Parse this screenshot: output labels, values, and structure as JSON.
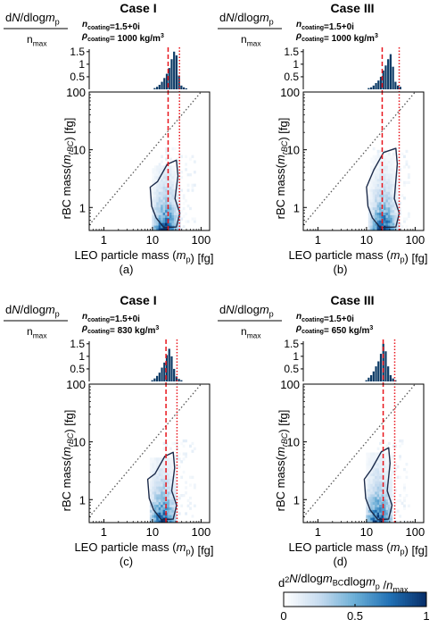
{
  "common": {
    "histogram_label_top": "dN/dlogm",
    "histogram_label_top_sub": "p",
    "histogram_label_bottom": "n",
    "histogram_label_bottom_sub": "max",
    "y_axis_label": "rBC mass(m",
    "y_axis_label_sub": "rBC",
    "y_axis_label_end": ") [fg]",
    "x_axis_label": "LEO particle mass (m",
    "x_axis_label_sub": "p",
    "x_axis_label_end": ") [fg]",
    "x_ticks": [
      "1",
      "10",
      "100"
    ],
    "y_ticks": [
      "1",
      "10",
      "100"
    ],
    "hist_ticks": [
      "0.5",
      "1",
      "1.5"
    ],
    "colors": {
      "bar": "#0d3b66",
      "red_dashed": "#e8151c",
      "red_dotted": "#e8151c",
      "diag": "#555555",
      "contour": "#1c2b4a"
    }
  },
  "panels": [
    {
      "case": "Case I",
      "n_coating": "=1.5+0i",
      "rho_coating": "= 1000 kg/m",
      "letter": "(a)"
    },
    {
      "case": "Case III",
      "n_coating": "=1.5+0i",
      "rho_coating": "= 1000 kg/m",
      "letter": "(b)"
    },
    {
      "case": "Case I",
      "n_coating": "=1.5+0i",
      "rho_coating": "= 830 kg/m",
      "letter": "(c)"
    },
    {
      "case": "Case III",
      "n_coating": "=1.5+0i",
      "rho_coating": "= 650 kg/m",
      "letter": "(d)"
    }
  ],
  "colorbar": {
    "title": "d",
    "title_parts": [
      "d",
      "2",
      "N/dlogm",
      "BC",
      "dlogm",
      "p",
      " /n",
      "max"
    ],
    "ticks": [
      "0",
      "0.5",
      "1"
    ]
  },
  "chart_data": [
    {
      "type": "bar",
      "panel": "(a)",
      "x_scale": "log",
      "xlim": [
        0.5,
        150
      ],
      "ylim": [
        0,
        1.6
      ],
      "bins_log10_center": [
        1.05,
        1.1,
        1.15,
        1.2,
        1.25,
        1.3,
        1.35,
        1.4,
        1.45,
        1.5,
        1.55,
        1.6,
        1.65,
        1.7
      ],
      "values": [
        0.05,
        0.1,
        0.18,
        0.3,
        0.45,
        0.62,
        0.85,
        1.2,
        1.5,
        1.35,
        0.55,
        0.15,
        0.08,
        0.04
      ],
      "dashed_line_x": 21,
      "dotted_line_x": 36
    },
    {
      "type": "heatmap",
      "panel": "(a)",
      "x_scale": "log",
      "y_scale": "log",
      "xlim": [
        0.5,
        150
      ],
      "ylim": [
        0.4,
        100
      ],
      "diagonal": "y = x",
      "dense_region": {
        "x": [
          9,
          35
        ],
        "y": [
          0.5,
          5
        ]
      }
    },
    {
      "type": "bar",
      "panel": "(b)",
      "x_scale": "log",
      "xlim": [
        0.5,
        150
      ],
      "ylim": [
        0,
        1.6
      ],
      "bins_log10_center": [
        1.05,
        1.1,
        1.15,
        1.2,
        1.25,
        1.3,
        1.35,
        1.4,
        1.45,
        1.5,
        1.55,
        1.6,
        1.65,
        1.7
      ],
      "values": [
        0.05,
        0.08,
        0.15,
        0.25,
        0.35,
        0.5,
        0.75,
        0.95,
        1.2,
        1.4,
        0.9,
        0.3,
        0.15,
        0.1
      ],
      "dashed_line_x": 21,
      "dotted_line_x": 47
    },
    {
      "type": "heatmap",
      "panel": "(b)",
      "x_scale": "log",
      "y_scale": "log",
      "xlim": [
        0.5,
        150
      ],
      "ylim": [
        0.4,
        100
      ],
      "diagonal": "y = x",
      "dense_region": {
        "x": [
          10,
          45
        ],
        "y": [
          0.5,
          8
        ]
      }
    },
    {
      "type": "bar",
      "panel": "(c)",
      "x_scale": "log",
      "xlim": [
        0.5,
        150
      ],
      "ylim": [
        0,
        1.6
      ],
      "bins_log10_center": [
        1.0,
        1.05,
        1.1,
        1.15,
        1.2,
        1.25,
        1.3,
        1.35,
        1.4,
        1.45,
        1.5,
        1.55,
        1.6
      ],
      "values": [
        0.05,
        0.12,
        0.22,
        0.35,
        0.55,
        0.75,
        1.05,
        1.3,
        1.0,
        0.5,
        0.2,
        0.1,
        0.05
      ],
      "dashed_line_x": 19,
      "dotted_line_x": 32
    },
    {
      "type": "heatmap",
      "panel": "(c)",
      "x_scale": "log",
      "y_scale": "log",
      "xlim": [
        0.5,
        150
      ],
      "ylim": [
        0.4,
        100
      ],
      "diagonal": "y = x",
      "dense_region": {
        "x": [
          8,
          30
        ],
        "y": [
          0.5,
          5
        ]
      }
    },
    {
      "type": "bar",
      "panel": "(d)",
      "x_scale": "log",
      "xlim": [
        0.5,
        150
      ],
      "ylim": [
        0,
        1.6
      ],
      "bins_log10_center": [
        1.0,
        1.05,
        1.1,
        1.15,
        1.2,
        1.25,
        1.3,
        1.35,
        1.4,
        1.45,
        1.5,
        1.55,
        1.6
      ],
      "values": [
        0.05,
        0.15,
        0.25,
        0.4,
        0.6,
        0.8,
        1.1,
        1.5,
        1.2,
        0.6,
        0.25,
        0.12,
        0.05
      ],
      "dashed_line_x": 22,
      "dotted_line_x": 38
    },
    {
      "type": "heatmap",
      "panel": "(d)",
      "x_scale": "log",
      "y_scale": "log",
      "xlim": [
        0.5,
        150
      ],
      "ylim": [
        0.4,
        100
      ],
      "diagonal": "y = x",
      "dense_region": {
        "x": [
          9,
          32
        ],
        "y": [
          0.5,
          6
        ]
      }
    }
  ]
}
